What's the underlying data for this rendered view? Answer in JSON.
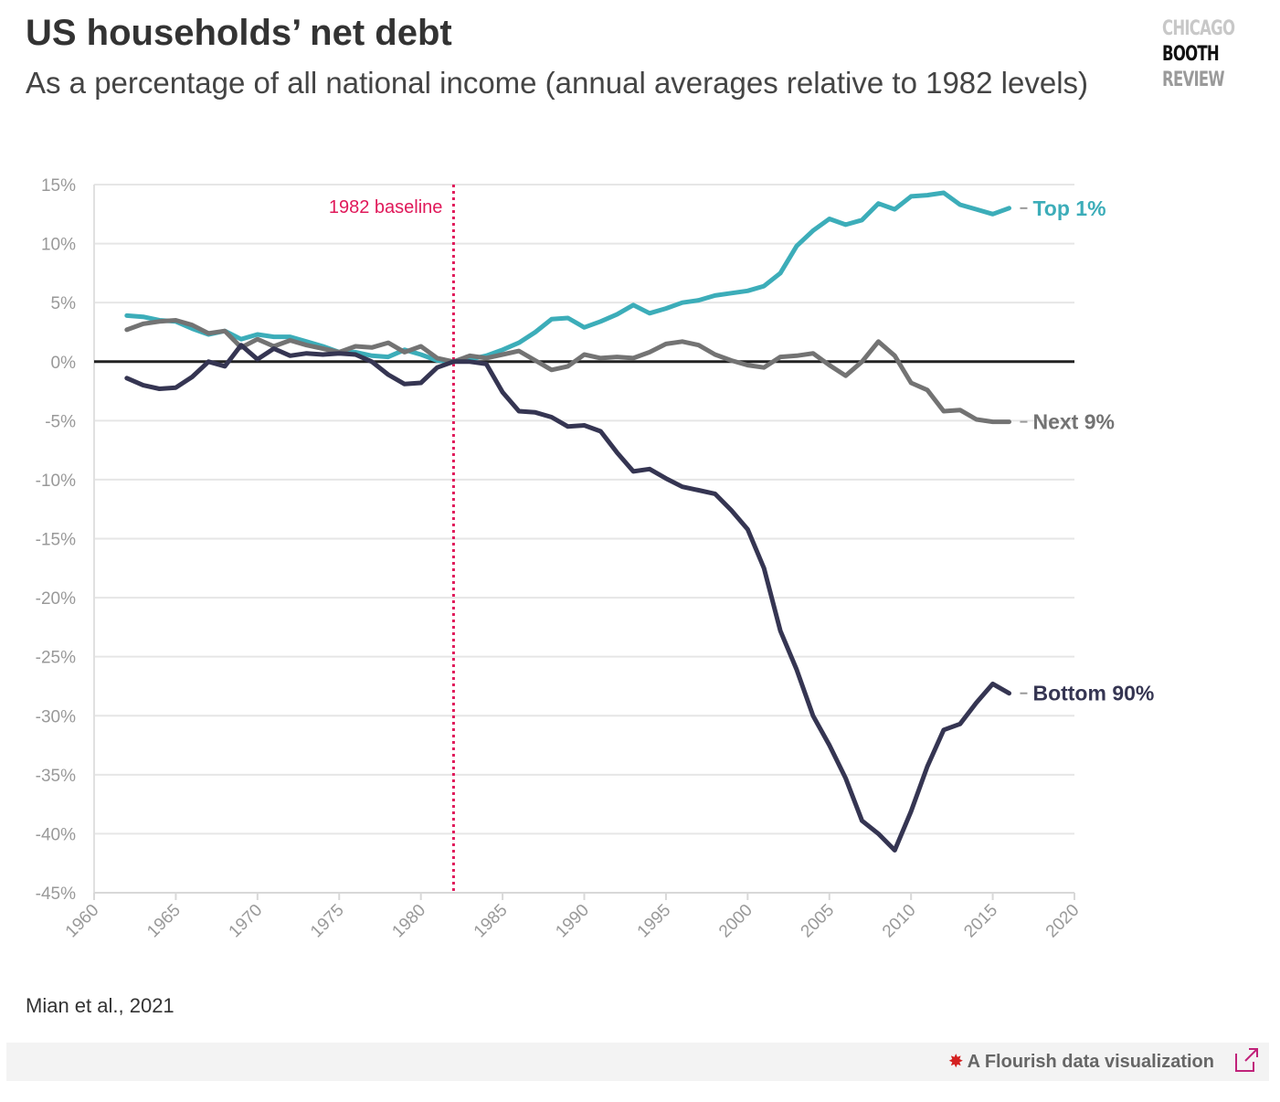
{
  "header": {
    "title": "US households’ net debt",
    "subtitle": "As a percentage of all national income (annual averages relative to 1982 levels)",
    "logo": [
      "CHICAGO",
      "BOOTH",
      "REVIEW"
    ]
  },
  "source": "Mian et al., 2021",
  "footer": {
    "credit": "A Flourish data visualization",
    "star_icon": "flourish-star-icon",
    "external_icon": "external-link-icon"
  },
  "colors": {
    "top1": "#3cadb9",
    "next9": "#737373",
    "bottom90": "#353552",
    "baseline": "#e0195a",
    "zero_line": "#222222",
    "grid": "#e6e6e6",
    "tick_label": "#999999"
  },
  "chart_data": {
    "type": "line",
    "xlim": [
      1960,
      2020
    ],
    "ylim": [
      -45,
      15
    ],
    "x_ticks": [
      1960,
      1965,
      1970,
      1975,
      1980,
      1985,
      1990,
      1995,
      2000,
      2005,
      2010,
      2015,
      2020
    ],
    "y_ticks": [
      15,
      10,
      5,
      0,
      -5,
      -10,
      -15,
      -20,
      -25,
      -30,
      -35,
      -40,
      -45
    ],
    "y_tick_labels": [
      "15%",
      "10%",
      "5%",
      "0%",
      "-5%",
      "-10%",
      "-15%",
      "-20%",
      "-25%",
      "-30%",
      "-35%",
      "-40%",
      "-45%"
    ],
    "grid": true,
    "annotation": {
      "x": 1982,
      "label": "1982 baseline"
    },
    "x": [
      1962,
      1963,
      1964,
      1965,
      1966,
      1967,
      1968,
      1969,
      1970,
      1971,
      1972,
      1973,
      1974,
      1975,
      1976,
      1977,
      1978,
      1979,
      1980,
      1981,
      1982,
      1983,
      1984,
      1985,
      1986,
      1987,
      1988,
      1989,
      1990,
      1991,
      1992,
      1993,
      1994,
      1995,
      1996,
      1997,
      1998,
      1999,
      2000,
      2001,
      2002,
      2003,
      2004,
      2005,
      2006,
      2007,
      2008,
      2009,
      2010,
      2011,
      2012,
      2013,
      2014,
      2015,
      2016
    ],
    "series": [
      {
        "name": "Top 1%",
        "color_key": "top1",
        "values": [
          3.9,
          3.8,
          3.5,
          3.4,
          2.8,
          2.3,
          2.6,
          1.9,
          2.3,
          2.1,
          2.1,
          1.7,
          1.3,
          0.8,
          0.8,
          0.5,
          0.4,
          1.0,
          0.6,
          0.1,
          0.0,
          0.2,
          0.5,
          1.0,
          1.6,
          2.5,
          3.6,
          3.7,
          2.9,
          3.4,
          4.0,
          4.8,
          4.1,
          4.5,
          5.0,
          5.2,
          5.6,
          5.8,
          6.0,
          6.4,
          7.5,
          9.8,
          11.1,
          12.1,
          11.6,
          12.0,
          13.4,
          12.9,
          14.0,
          14.1,
          14.3,
          13.3,
          12.9,
          12.5,
          13.0
        ]
      },
      {
        "name": "Next 9%",
        "color_key": "next9",
        "values": [
          2.7,
          3.2,
          3.4,
          3.5,
          3.1,
          2.4,
          2.6,
          1.2,
          1.9,
          1.3,
          1.8,
          1.4,
          1.1,
          0.8,
          1.3,
          1.2,
          1.6,
          0.8,
          1.3,
          0.3,
          0.0,
          0.5,
          0.3,
          0.6,
          0.9,
          0.1,
          -0.7,
          -0.4,
          0.6,
          0.3,
          0.4,
          0.3,
          0.8,
          1.5,
          1.7,
          1.4,
          0.6,
          0.1,
          -0.3,
          -0.5,
          0.4,
          0.5,
          0.7,
          -0.3,
          -1.2,
          0.0,
          1.7,
          0.5,
          -1.8,
          -2.4,
          -4.2,
          -4.1,
          -4.9,
          -5.1,
          -5.1
        ]
      },
      {
        "name": "Bottom 90%",
        "color_key": "bottom90",
        "values": [
          -1.4,
          -2.0,
          -2.3,
          -2.2,
          -1.3,
          0.0,
          -0.4,
          1.4,
          0.2,
          1.1,
          0.5,
          0.7,
          0.6,
          0.7,
          0.6,
          0.0,
          -1.1,
          -1.9,
          -1.8,
          -0.5,
          0.0,
          0.0,
          -0.2,
          -2.6,
          -4.2,
          -4.3,
          -4.7,
          -5.5,
          -5.4,
          -5.9,
          -7.7,
          -9.3,
          -9.1,
          -9.9,
          -10.6,
          -10.9,
          -11.2,
          -12.6,
          -14.2,
          -17.5,
          -22.8,
          -26.1,
          -30.0,
          -32.5,
          -35.3,
          -38.9,
          -40.0,
          -41.4,
          -38.1,
          -34.3,
          -31.2,
          -30.7,
          -28.9,
          -27.3,
          -28.1
        ]
      }
    ]
  }
}
